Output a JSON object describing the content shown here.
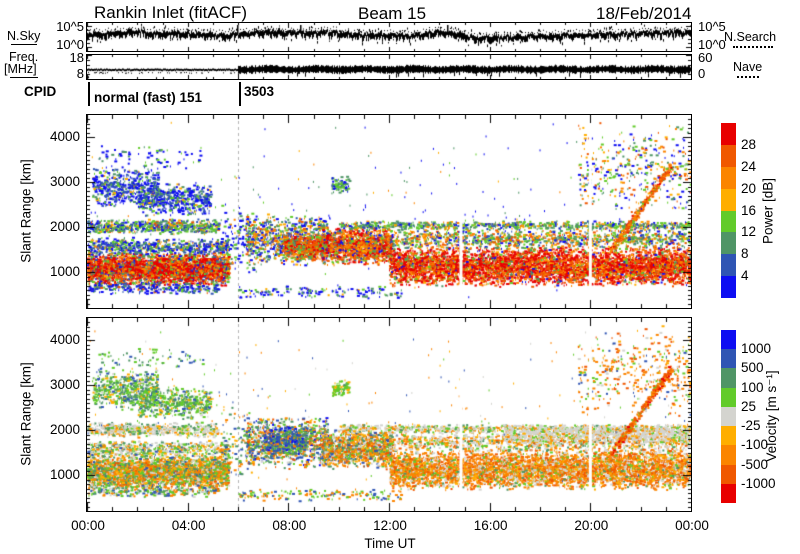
{
  "title": {
    "left": "Rankin Inlet (fitACF)",
    "center": "Beam 15",
    "right": "18/Feb/2014"
  },
  "left_labels": {
    "nsky": "N.Sky",
    "freq1": "Freq.",
    "freq2": "[MHz]",
    "cpid": "CPID"
  },
  "right_labels": {
    "nsearch": "N.Search",
    "nave": "Nave"
  },
  "noise_strip": {
    "tick_top": "10^5",
    "tick_bottom": "10^0",
    "profile": [
      [
        0,
        0.42
      ],
      [
        1,
        0.38
      ],
      [
        2,
        0.34
      ],
      [
        2.6,
        0.4
      ],
      [
        3.4,
        0.36
      ],
      [
        4.6,
        0.42
      ],
      [
        5.4,
        0.46
      ],
      [
        6.2,
        0.4
      ],
      [
        7,
        0.34
      ],
      [
        8.4,
        0.36
      ],
      [
        9.6,
        0.36
      ],
      [
        10.8,
        0.44
      ],
      [
        12,
        0.46
      ],
      [
        13,
        0.48
      ],
      [
        13.8,
        0.34
      ],
      [
        14.5,
        0.36
      ],
      [
        15.4,
        0.56
      ],
      [
        16.5,
        0.54
      ],
      [
        18,
        0.48
      ],
      [
        19.5,
        0.44
      ],
      [
        21,
        0.42
      ],
      [
        22.5,
        0.38
      ],
      [
        24,
        0.34
      ]
    ],
    "spikes": [
      5.95,
      8.45,
      14.3
    ],
    "dotted_row": {
      "t0": 6.6,
      "t1": 10.2,
      "frac": 0.28
    }
  },
  "freq_strip": {
    "tick_top": "18",
    "tick_bottom": "8",
    "right_tick_top": "60",
    "right_tick_bottom": "0",
    "pre_mhz": 11.8,
    "post_mhz": 12.0,
    "switch_t": 6,
    "fmin": 8,
    "fmax": 18
  },
  "cpid": {
    "label": "CPID",
    "segments": [
      {
        "t": 0,
        "label": "normal (fast) 151"
      },
      {
        "t": 6,
        "label": "3503"
      }
    ]
  },
  "x_axis": {
    "label": "Time UT",
    "ticks": [
      {
        "t": 0,
        "label": "00:00"
      },
      {
        "t": 4,
        "label": "04:00"
      },
      {
        "t": 8,
        "label": "08:00"
      },
      {
        "t": 12,
        "label": "12:00"
      },
      {
        "t": 16,
        "label": "16:00"
      },
      {
        "t": 20,
        "label": "20:00"
      },
      {
        "t": 24,
        "label": "00:00"
      }
    ]
  },
  "y_axis": {
    "label": "Slant Range [km]",
    "min": 200,
    "max": 4500,
    "ticks": [
      {
        "r": 4000,
        "label": "4000"
      },
      {
        "r": 3000,
        "label": "3000"
      },
      {
        "r": 2000,
        "label": "2000"
      },
      {
        "r": 1000,
        "label": "1000"
      }
    ]
  },
  "palette": {
    "power": [
      "#e80000",
      "#f05800",
      "#fb8500",
      "#ffae00",
      "#62cb2a",
      "#4f9566",
      "#2f55b4",
      "#0d0df2"
    ],
    "velocity": [
      "#0d0df2",
      "#2f55b4",
      "#4f9566",
      "#62cb2a",
      "#d4d4cf",
      "#ffae00",
      "#fb8500",
      "#f05800",
      "#e80000"
    ],
    "dashed_line": "#b4b4b4"
  },
  "colorbars": {
    "power": {
      "title": "Power [dB]",
      "labels": [
        "28",
        "24",
        "20",
        "16",
        "12",
        "8",
        "4"
      ]
    },
    "velocity": {
      "title": "Velocity [m s⁻¹]",
      "labels": [
        "1000",
        "500",
        "100",
        "25",
        "-25",
        "-100",
        "-500",
        "-1000"
      ]
    }
  },
  "chart_data": [
    {
      "type": "heatmap",
      "panel": "power",
      "station": "Rankin Inlet",
      "mode": "fitACF",
      "beam": 15,
      "date": "18/Feb/2014",
      "xlabel": "Time UT",
      "ylabel": "Slant Range [km]",
      "xlim_hours": [
        0,
        24
      ],
      "ylim_km": [
        200,
        4500
      ],
      "color_bounds_db": [
        4,
        8,
        12,
        16,
        20,
        24,
        28
      ],
      "legend_position": "right",
      "grid": false,
      "cpid_change_hour": 6,
      "seed": 42,
      "gaps": [
        {
          "t": 14.86,
          "w": 0.12
        },
        {
          "t": 20.0,
          "w": 0.12
        }
      ],
      "clusters": [
        {
          "t": [
            0,
            5.6
          ],
          "r": [
            700,
            1450
          ],
          "n": 3200,
          "c": {
            "0": 40,
            "1": 18,
            "2": 12,
            "3": 6,
            "4": 8,
            "5": 6,
            "6": 6,
            "7": 4
          }
        },
        {
          "t": [
            0,
            5.6
          ],
          "r": [
            1350,
            1800
          ],
          "n": 650,
          "c": {
            "7": 30,
            "6": 20,
            "5": 20,
            "4": 15,
            "2": 8,
            "3": 7
          }
        },
        {
          "t": [
            0,
            5.2
          ],
          "r": [
            520,
            800
          ],
          "n": 280,
          "c": {
            "7": 45,
            "6": 20,
            "5": 15,
            "4": 10,
            "1": 10
          }
        },
        {
          "t": [
            0,
            5.2
          ],
          "r": [
            1850,
            2200
          ],
          "n": 620,
          "c": {
            "4": 28,
            "5": 25,
            "7": 20,
            "6": 10,
            "3": 9,
            "1": 8
          }
        },
        {
          "t": [
            0.2,
            2.8
          ],
          "r": [
            2450,
            3400
          ],
          "n": 520,
          "c": {
            "7": 45,
            "6": 25,
            "5": 15,
            "4": 10,
            "3": 5
          }
        },
        {
          "t": [
            2.0,
            4.9
          ],
          "r": [
            2250,
            3000
          ],
          "n": 520,
          "c": {
            "7": 45,
            "6": 25,
            "5": 15,
            "4": 10,
            "3": 5
          }
        },
        {
          "t": [
            0.4,
            4.6
          ],
          "r": [
            3300,
            3900
          ],
          "n": 70,
          "c": {
            "7": 70,
            "5": 15,
            "4": 15
          }
        },
        {
          "t": [
            5.3,
            6.6
          ],
          "r": [
            850,
            2600
          ],
          "n": 110,
          "c": {
            "7": 55,
            "5": 20,
            "4": 15,
            "2": 10
          }
        },
        {
          "t": [
            6.3,
            9.6
          ],
          "r": [
            1150,
            2350
          ],
          "n": 950,
          "c": {
            "7": 22,
            "6": 12,
            "4": 18,
            "5": 16,
            "2": 14,
            "1": 10,
            "3": 8
          }
        },
        {
          "t": [
            7.8,
            9.4
          ],
          "r": [
            1250,
            1900
          ],
          "n": 450,
          "c": {
            "1": 35,
            "0": 22,
            "2": 20,
            "4": 13,
            "5": 10
          }
        },
        {
          "t": [
            9.3,
            12.1
          ],
          "r": [
            1150,
            2050
          ],
          "n": 1300,
          "c": {
            "0": 28,
            "1": 24,
            "2": 16,
            "4": 10,
            "5": 7,
            "7": 9,
            "3": 6
          }
        },
        {
          "t": [
            12,
            24
          ],
          "r": [
            680,
            1600
          ],
          "n": 5200,
          "c": {
            "0": 46,
            "1": 22,
            "2": 14,
            "3": 5,
            "4": 6,
            "5": 4,
            "7": 3
          }
        },
        {
          "t": [
            12,
            24
          ],
          "r": [
            1500,
            2000
          ],
          "n": 1100,
          "c": {
            "4": 22,
            "5": 20,
            "2": 18,
            "1": 14,
            "3": 10,
            "7": 10,
            "6": 6
          }
        },
        {
          "t": [
            10,
            24
          ],
          "r": [
            1950,
            2160
          ],
          "n": 800,
          "c": {
            "4": 30,
            "5": 30,
            "7": 12,
            "2": 12,
            "3": 10,
            "6": 6
          }
        },
        {
          "t": [
            19.5,
            24
          ],
          "r": [
            2300,
            4350
          ],
          "n": 380,
          "c": {
            "7": 26,
            "5": 18,
            "4": 16,
            "2": 16,
            "1": 14,
            "3": 10
          }
        },
        {
          "t": [
            20.8,
            23.2
          ],
          "r": [
            1500,
            3400
          ],
          "n": 320,
          "shape": "diag",
          "jit": 130,
          "c": {
            "1": 40,
            "2": 28,
            "0": 16,
            "4": 10,
            "3": 6
          }
        },
        {
          "t": [
            0,
            24
          ],
          "r": [
            400,
            4400
          ],
          "n": 260,
          "sz": 1,
          "c": {
            "7": 50,
            "5": 18,
            "4": 14,
            "2": 10,
            "3": 8
          }
        },
        {
          "t": [
            9.7,
            10.4
          ],
          "r": [
            2750,
            3150
          ],
          "n": 80,
          "c": {
            "4": 45,
            "5": 30,
            "7": 25
          }
        },
        {
          "t": [
            6,
            12.5
          ],
          "r": [
            430,
            720
          ],
          "n": 160,
          "c": {
            "7": 55,
            "5": 20,
            "4": 15,
            "3": 10
          }
        }
      ]
    },
    {
      "type": "heatmap",
      "panel": "velocity",
      "station": "Rankin Inlet",
      "mode": "fitACF",
      "beam": 15,
      "date": "18/Feb/2014",
      "xlabel": "Time UT",
      "ylabel": "Slant Range [km]",
      "xlim_hours": [
        0,
        24
      ],
      "ylim_km": [
        200,
        4500
      ],
      "color_bounds_ms": [
        -1000,
        -500,
        -100,
        -25,
        25,
        100,
        500,
        1000
      ],
      "legend_position": "right",
      "grid": false,
      "cpid_change_hour": 6,
      "seed": 77,
      "gaps": [
        {
          "t": 14.86,
          "w": 0.12
        },
        {
          "t": 20.0,
          "w": 0.12
        }
      ],
      "clusters": [
        {
          "t": [
            0,
            5.6
          ],
          "r": [
            700,
            1450
          ],
          "n": 3200,
          "c": {
            "6": 28,
            "5": 14,
            "3": 20,
            "2": 16,
            "4": 12,
            "7": 6,
            "1": 4
          }
        },
        {
          "t": [
            0,
            5.6
          ],
          "r": [
            1350,
            1800
          ],
          "n": 650,
          "c": {
            "4": 30,
            "3": 20,
            "2": 16,
            "6": 16,
            "5": 12,
            "1": 6
          }
        },
        {
          "t": [
            0,
            5.2
          ],
          "r": [
            520,
            800
          ],
          "n": 280,
          "c": {
            "3": 30,
            "6": 25,
            "1": 20,
            "2": 15,
            "4": 10
          }
        },
        {
          "t": [
            0,
            5.2
          ],
          "r": [
            1850,
            2200
          ],
          "n": 620,
          "c": {
            "4": 52,
            "5": 12,
            "6": 10,
            "3": 12,
            "2": 14
          }
        },
        {
          "t": [
            0.2,
            2.8
          ],
          "r": [
            2450,
            3400
          ],
          "n": 520,
          "c": {
            "3": 40,
            "2": 34,
            "5": 10,
            "4": 8,
            "1": 8
          }
        },
        {
          "t": [
            2.0,
            4.9
          ],
          "r": [
            2250,
            3000
          ],
          "n": 520,
          "c": {
            "3": 42,
            "2": 34,
            "5": 10,
            "4": 6,
            "1": 8
          }
        },
        {
          "t": [
            0.4,
            4.6
          ],
          "r": [
            3300,
            3900
          ],
          "n": 70,
          "c": {
            "3": 50,
            "2": 30,
            "1": 20
          }
        },
        {
          "t": [
            5.3,
            6.6
          ],
          "r": [
            850,
            2600
          ],
          "n": 110,
          "c": {
            "3": 30,
            "6": 25,
            "1": 20,
            "2": 15,
            "5": 10
          }
        },
        {
          "t": [
            6.3,
            9.6
          ],
          "r": [
            1150,
            2350
          ],
          "n": 950,
          "c": {
            "1": 20,
            "2": 20,
            "3": 14,
            "6": 16,
            "7": 10,
            "4": 8,
            "0": 6,
            "5": 6
          }
        },
        {
          "t": [
            7.0,
            8.7
          ],
          "r": [
            1400,
            2150
          ],
          "n": 420,
          "c": {
            "1": 42,
            "0": 14,
            "2": 22,
            "3": 12,
            "6": 10
          }
        },
        {
          "t": [
            9.3,
            12.1
          ],
          "r": [
            1150,
            2050
          ],
          "n": 1300,
          "c": {
            "6": 26,
            "7": 12,
            "5": 12,
            "3": 14,
            "2": 12,
            "4": 14,
            "1": 10
          }
        },
        {
          "t": [
            12,
            24
          ],
          "r": [
            680,
            1600
          ],
          "n": 5200,
          "c": {
            "6": 38,
            "7": 22,
            "5": 12,
            "4": 16,
            "3": 8,
            "2": 4
          }
        },
        {
          "t": [
            12,
            24
          ],
          "r": [
            1500,
            2000
          ],
          "n": 1100,
          "c": {
            "4": 34,
            "6": 22,
            "5": 12,
            "3": 14,
            "2": 10,
            "7": 8
          }
        },
        {
          "t": [
            10,
            24
          ],
          "r": [
            1950,
            2160
          ],
          "n": 800,
          "c": {
            "4": 48,
            "3": 16,
            "6": 16,
            "2": 10,
            "5": 10
          }
        },
        {
          "t": [
            16.5,
            24
          ],
          "r": [
            1700,
            2150
          ],
          "n": 900,
          "c": {
            "4": 74,
            "5": 10,
            "3": 8,
            "6": 8
          }
        },
        {
          "t": [
            19.5,
            24
          ],
          "r": [
            2300,
            4350
          ],
          "n": 380,
          "c": {
            "6": 36,
            "7": 18,
            "3": 14,
            "5": 12,
            "4": 10,
            "1": 10
          }
        },
        {
          "t": [
            20.8,
            23.2
          ],
          "r": [
            1500,
            3400
          ],
          "n": 320,
          "shape": "diag",
          "jit": 130,
          "c": {
            "7": 42,
            "8": 18,
            "6": 30,
            "3": 10
          }
        },
        {
          "t": [
            0,
            24
          ],
          "r": [
            400,
            4400
          ],
          "n": 260,
          "sz": 1,
          "c": {
            "6": 30,
            "3": 20,
            "1": 15,
            "4": 15,
            "5": 20
          }
        },
        {
          "t": [
            9.7,
            10.4
          ],
          "r": [
            2750,
            3150
          ],
          "n": 80,
          "c": {
            "3": 50,
            "5": 30,
            "2": 20
          }
        },
        {
          "t": [
            6,
            12.5
          ],
          "r": [
            430,
            720
          ],
          "n": 160,
          "c": {
            "3": 40,
            "6": 30,
            "1": 30
          }
        }
      ]
    }
  ]
}
